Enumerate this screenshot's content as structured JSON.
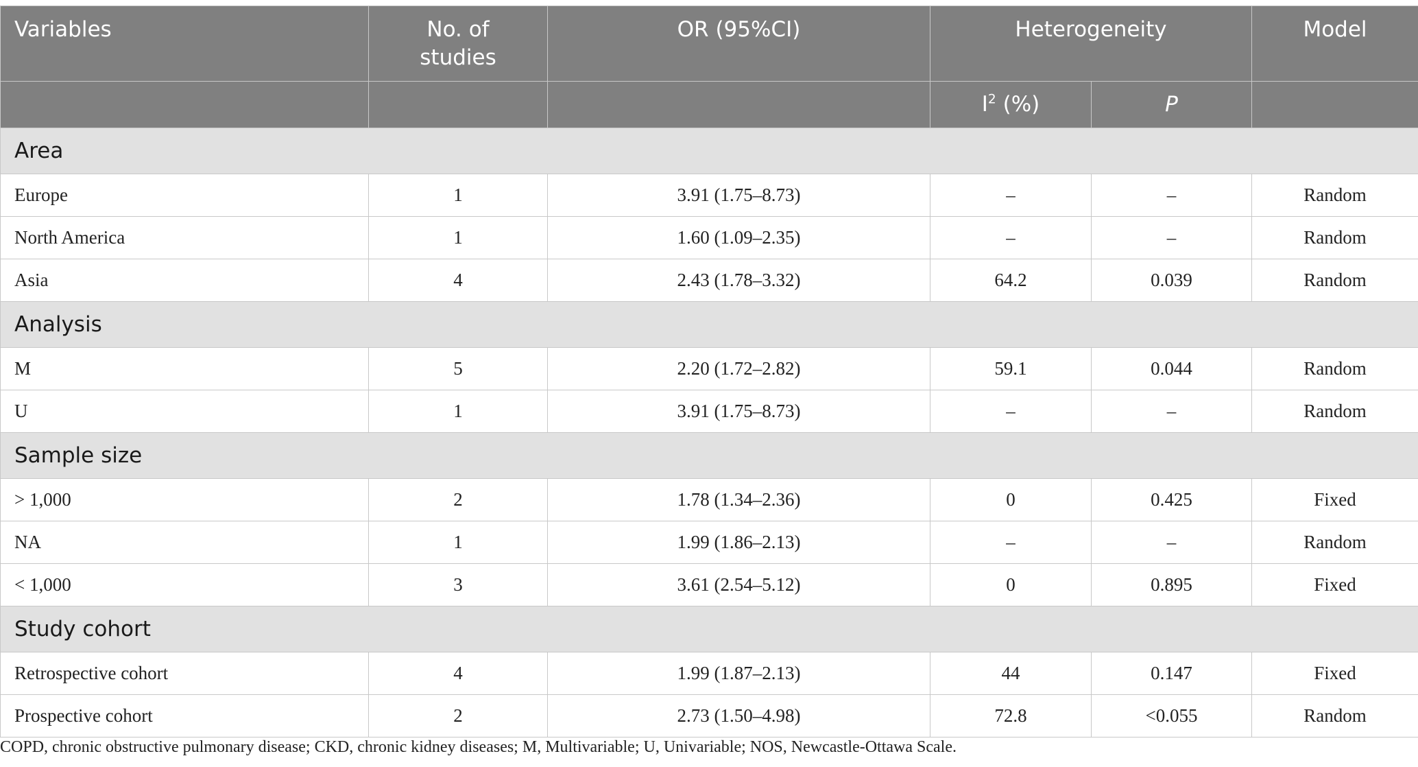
{
  "header": {
    "variables": "Variables",
    "no_of_studies": "No. of studies",
    "or_ci": "OR (95%CI)",
    "heterogeneity": "Heterogeneity",
    "model": "Model",
    "i2_base": "I",
    "i2_sup": "2",
    "i2_rest": " (%)",
    "p": "P"
  },
  "sections": [
    {
      "title": "Area",
      "rows": [
        {
          "variable": "Europe",
          "studies": "1",
          "or": "3.91 (1.75–8.73)",
          "i2": "–",
          "p": "–",
          "model": "Random"
        },
        {
          "variable": "North America",
          "studies": "1",
          "or": "1.60 (1.09–2.35)",
          "i2": "–",
          "p": "–",
          "model": "Random"
        },
        {
          "variable": "Asia",
          "studies": "4",
          "or": "2.43 (1.78–3.32)",
          "i2": "64.2",
          "p": "0.039",
          "model": "Random"
        }
      ]
    },
    {
      "title": "Analysis",
      "rows": [
        {
          "variable": "M",
          "studies": "5",
          "or": "2.20 (1.72–2.82)",
          "i2": "59.1",
          "p": "0.044",
          "model": "Random"
        },
        {
          "variable": "U",
          "studies": "1",
          "or": "3.91 (1.75–8.73)",
          "i2": "–",
          "p": "–",
          "model": "Random"
        }
      ]
    },
    {
      "title": "Sample size",
      "rows": [
        {
          "variable": "> 1,000",
          "studies": "2",
          "or": "1.78 (1.34–2.36)",
          "i2": "0",
          "p": "0.425",
          "model": "Fixed"
        },
        {
          "variable": "NA",
          "studies": "1",
          "or": "1.99 (1.86–2.13)",
          "i2": "–",
          "p": "–",
          "model": "Random"
        },
        {
          "variable": "< 1,000",
          "studies": "3",
          "or": "3.61 (2.54–5.12)",
          "i2": "0",
          "p": "0.895",
          "model": "Fixed"
        }
      ]
    },
    {
      "title": "Study cohort",
      "rows": [
        {
          "variable": "Retrospective cohort",
          "studies": "4",
          "or": "1.99 (1.87–2.13)",
          "i2": "44",
          "p": "0.147",
          "model": "Fixed"
        },
        {
          "variable": "Prospective cohort",
          "studies": "2",
          "or": "2.73 (1.50–4.98)",
          "i2": "72.8",
          "p": "<0.055",
          "model": "Random"
        }
      ]
    }
  ],
  "footnote": "COPD, chronic obstructive pulmonary disease; CKD, chronic kidney diseases; M, Multivariable; U, Univariable; NOS, Newcastle-Ottawa Scale."
}
